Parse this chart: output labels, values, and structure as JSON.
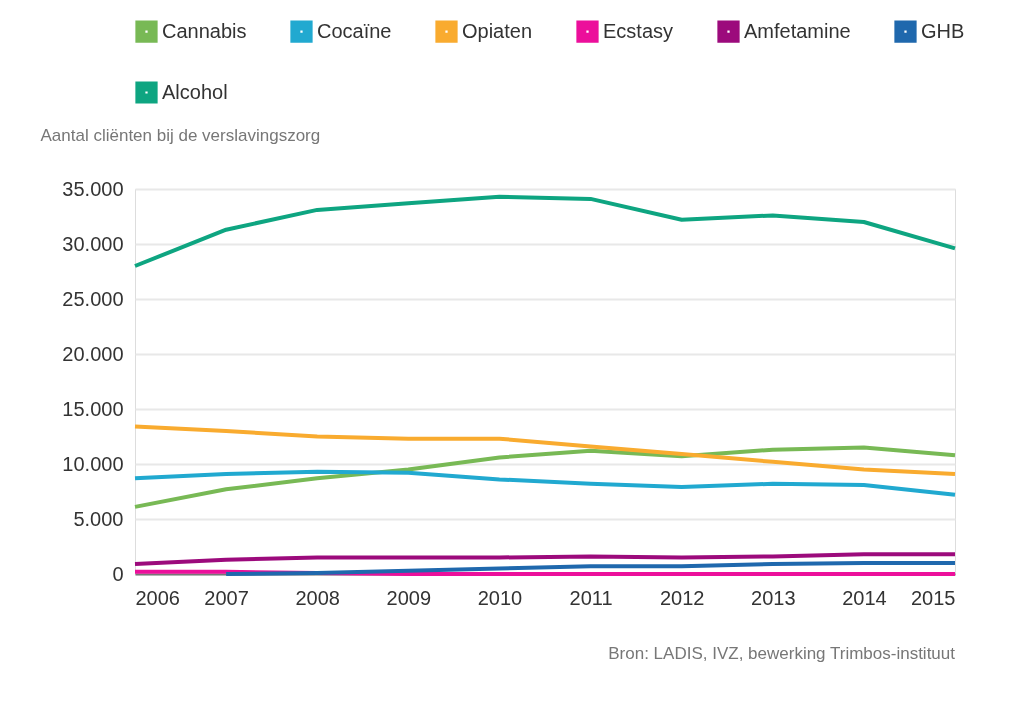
{
  "chart_data": {
    "type": "line",
    "ylabel": "Aantal cliënten bij de verslavingszorg",
    "x": [
      2006,
      2007,
      2008,
      2009,
      2010,
      2011,
      2012,
      2013,
      2014,
      2015
    ],
    "xlim": [
      2006,
      2015
    ],
    "xticks": [
      2006,
      2007,
      2008,
      2009,
      2010,
      2011,
      2012,
      2013,
      2014,
      2015
    ],
    "ylim": [
      0,
      35000
    ],
    "yticks": [
      0,
      {
        "value": 5000,
        "label": "5.000"
      },
      {
        "value": 10000,
        "label": "10.000"
      },
      {
        "value": 15000,
        "label": "15.000"
      },
      {
        "value": 20000,
        "label": "20.000"
      },
      {
        "value": 25000,
        "label": "25.000"
      },
      {
        "value": 30000,
        "label": "30.000"
      },
      {
        "value": 35000,
        "label": "35.000"
      }
    ],
    "series": [
      {
        "name": "Cannabis",
        "color": "#78b955",
        "values": [
          6100,
          7700,
          8700,
          9500,
          10600,
          11200,
          10700,
          11300,
          11500,
          10800
        ]
      },
      {
        "name": "Cocaïne",
        "color": "#21a9d0",
        "values": [
          8700,
          9100,
          9300,
          9200,
          8600,
          8200,
          7900,
          8200,
          8100,
          7200
        ]
      },
      {
        "name": "Opiaten",
        "color": "#f9ab2f",
        "values": [
          13400,
          13000,
          12500,
          12300,
          12300,
          11600,
          10900,
          10200,
          9500,
          9100
        ]
      },
      {
        "name": "Ecstasy",
        "color": "#ec0f9b",
        "values": [
          200,
          200,
          100,
          0,
          0,
          0,
          0,
          0,
          0,
          0
        ]
      },
      {
        "name": "Amfetamine",
        "color": "#9c0a7c",
        "values": [
          900,
          1300,
          1500,
          1500,
          1500,
          1600,
          1500,
          1600,
          1800,
          1800
        ]
      },
      {
        "name": "GHB",
        "color": "#1f68ad",
        "values": [
          null,
          0,
          100,
          300,
          500,
          700,
          700,
          900,
          1000,
          1000
        ]
      },
      {
        "name": "Alcohol",
        "color": "#0ea581",
        "values": [
          28000,
          31300,
          33100,
          33700,
          34300,
          34100,
          32200,
          32600,
          32000,
          29600
        ]
      }
    ],
    "grid": "y",
    "legend": "top left",
    "marker": "none",
    "line_style": "solid",
    "annotations": [
      "Bron: LADIS, IVZ, bewerking Trimbos-instituut"
    ]
  }
}
